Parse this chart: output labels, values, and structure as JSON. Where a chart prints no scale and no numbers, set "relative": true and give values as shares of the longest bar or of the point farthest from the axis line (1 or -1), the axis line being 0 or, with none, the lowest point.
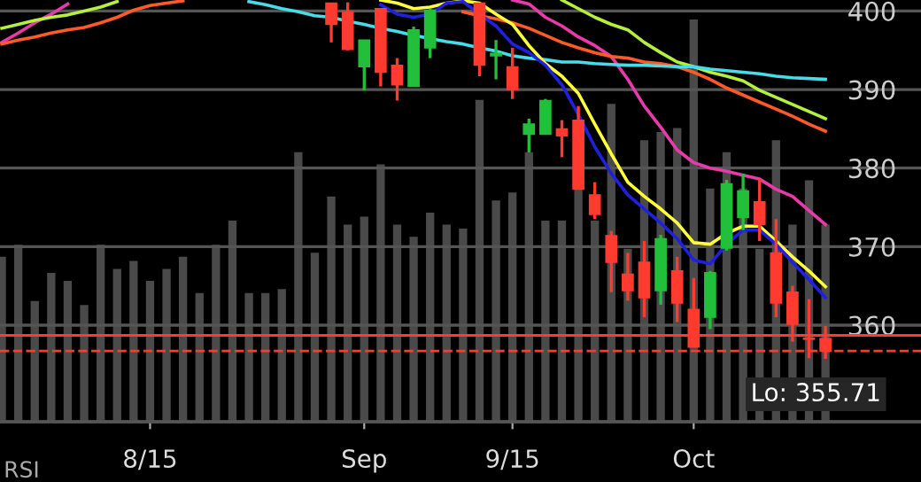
{
  "chart_data": [
    {
      "type": "candlestick",
      "categories": [
        null,
        null,
        null,
        null,
        null,
        null,
        null,
        null,
        null,
        "8/15",
        null,
        null,
        null,
        null,
        null,
        null,
        null,
        null,
        null,
        null,
        null,
        null,
        "Sep",
        null,
        null,
        null,
        null,
        null,
        null,
        null,
        null,
        "9/15",
        null,
        null,
        null,
        null,
        null,
        null,
        null,
        null,
        null,
        null,
        "Oct",
        null,
        null,
        null,
        null,
        null,
        null,
        null,
        null
      ],
      "ohlc": [
        null,
        null,
        null,
        null,
        null,
        null,
        null,
        null,
        null,
        null,
        null,
        null,
        null,
        null,
        null,
        null,
        null,
        null,
        null,
        null,
        [
          401.0,
          401.0,
          396.0,
          398.3
        ],
        [
          399.9,
          401.1,
          395.0,
          395.1
        ],
        [
          392.9,
          396.3,
          389.9,
          396.3
        ],
        [
          400.3,
          400.3,
          390.4,
          392.2
        ],
        [
          393.1,
          394.0,
          388.6,
          390.6
        ],
        [
          390.4,
          398.0,
          390.4,
          397.6
        ],
        [
          395.3,
          400.3,
          394.0,
          400.1
        ],
        null,
        null,
        [
          401.0,
          401.0,
          391.7,
          393.1
        ],
        [
          394.3,
          396.3,
          391.3,
          394.6
        ],
        [
          392.9,
          395.3,
          388.8,
          390.0
        ],
        [
          384.3,
          386.3,
          382.0,
          385.6
        ],
        [
          384.3,
          388.8,
          384.3,
          388.6
        ],
        [
          385.0,
          386.1,
          381.4,
          384.1
        ],
        [
          386.1,
          387.9,
          377.3,
          377.3
        ],
        [
          376.6,
          378.2,
          373.5,
          374.1
        ],
        [
          371.4,
          372.0,
          364.2,
          368.0
        ],
        [
          366.5,
          369.2,
          363.1,
          364.4
        ],
        [
          368.0,
          370.7,
          361.0,
          363.5
        ],
        [
          364.4,
          371.5,
          362.6,
          371.0
        ],
        [
          366.9,
          368.7,
          360.4,
          362.8
        ],
        [
          362.0,
          366.0,
          357.2,
          357.2
        ],
        [
          361.0,
          366.9,
          359.5,
          366.7
        ],
        [
          369.8,
          378.5,
          369.5,
          378.0
        ],
        [
          373.7,
          379.3,
          372.1,
          377.1
        ],
        [
          375.7,
          378.6,
          370.7,
          372.8
        ],
        [
          369.2,
          373.5,
          361.0,
          362.8
        ],
        [
          364.2,
          365.0,
          357.9,
          360.1
        ],
        [
          358.3,
          363.3,
          355.8,
          358.2
        ],
        [
          358.3,
          359.9,
          355.71,
          356.7
        ]
      ],
      "colors": [
        "#ff3b30",
        "#ff3b30",
        "#ff3b30",
        "#ff3b30",
        "#ff3b30",
        "#ff3b30",
        "#ff3b30",
        "#ff3b30",
        "#ff3b30",
        "#ff3b30",
        "#ff3b30",
        "#ff3b30",
        "#ff3b30",
        "#ff3b30",
        "#ff3b30",
        "#ff3b30",
        "#ff3b30",
        "#ff3b30",
        "#ff3b30",
        "#ff3b30",
        "#ff3b30",
        "#ff3b30",
        "#22c03a",
        "#ff3b30",
        "#ff3b30",
        "#22c03a",
        "#22c03a",
        "#ff3b30",
        "#ff3b30",
        "#ff3b30",
        "#22c03a",
        "#ff3b30",
        "#22c03a",
        "#22c03a",
        "#ff3b30",
        "#ff3b30",
        "#ff3b30",
        "#ff3b30",
        "#ff3b30",
        "#ff3b30",
        "#22c03a",
        "#ff3b30",
        "#ff3b30",
        "#22c03a",
        "#22c03a",
        "#22c03a",
        "#ff3b30",
        "#ff3b30",
        "#ff3b30",
        "#ff3b30",
        "#ff3b30"
      ],
      "series": [
        {
          "type": "line",
          "color": "#e83aa8",
          "values": [
            396.0,
            397.2,
            398.5,
            399.6,
            400.9,
            null,
            null,
            null,
            null,
            null,
            null,
            null,
            null,
            null,
            null,
            null,
            null,
            null,
            null,
            null,
            null,
            null,
            null,
            null,
            null,
            null,
            null,
            null,
            null,
            null,
            null,
            401.4,
            400.9,
            399.2,
            398.1,
            396.7,
            395.6,
            394.2,
            391.3,
            387.9,
            385.2,
            382.3,
            380.7,
            380.0,
            379.6,
            379.1,
            378.6,
            377.3,
            376.4,
            374.6,
            372.8
          ]
        },
        {
          "type": "line",
          "color": "#b4f03c",
          "values": [
            397.8,
            398.3,
            398.8,
            399.2,
            399.5,
            400.0,
            400.5,
            401.2,
            null,
            null,
            null,
            null,
            null,
            null,
            null,
            null,
            null,
            null,
            null,
            null,
            null,
            null,
            null,
            null,
            null,
            null,
            null,
            null,
            null,
            null,
            null,
            null,
            null,
            null,
            401.4,
            400.3,
            399.2,
            398.3,
            397.6,
            396.0,
            394.7,
            393.5,
            392.9,
            392.2,
            391.7,
            391.1,
            389.9,
            389.0,
            388.1,
            387.2,
            386.3
          ]
        },
        {
          "type": "line",
          "color": "#ff5a28",
          "values": [
            395.8,
            396.3,
            396.7,
            397.2,
            397.6,
            397.9,
            398.5,
            399.2,
            400.1,
            400.7,
            401.0,
            401.3,
            null,
            null,
            null,
            null,
            null,
            null,
            null,
            null,
            null,
            null,
            null,
            null,
            null,
            null,
            null,
            null,
            399.9,
            399.4,
            399.0,
            398.5,
            397.8,
            396.9,
            396.0,
            395.3,
            394.7,
            394.2,
            394.0,
            393.5,
            393.3,
            392.9,
            392.2,
            391.3,
            390.2,
            389.3,
            388.4,
            387.5,
            386.6,
            385.6,
            384.7
          ]
        },
        {
          "type": "line",
          "color": "#46dcea",
          "values": [
            null,
            null,
            null,
            null,
            null,
            null,
            null,
            null,
            null,
            null,
            null,
            null,
            null,
            null,
            null,
            401.2,
            400.8,
            400.3,
            399.9,
            399.4,
            399.2,
            398.7,
            398.3,
            397.8,
            397.4,
            396.9,
            396.5,
            396.1,
            395.8,
            395.3,
            394.9,
            394.3,
            394.0,
            393.8,
            393.5,
            393.5,
            393.3,
            393.2,
            393.1,
            393.1,
            393.0,
            392.9,
            392.9,
            392.6,
            392.4,
            392.2,
            392.0,
            391.7,
            391.5,
            391.4,
            391.3
          ]
        },
        {
          "type": "line",
          "color": "#ffff3c",
          "values": [
            null,
            null,
            null,
            null,
            null,
            null,
            null,
            null,
            null,
            null,
            null,
            null,
            null,
            null,
            null,
            null,
            null,
            null,
            null,
            null,
            null,
            null,
            null,
            401.4,
            401.0,
            400.3,
            400.5,
            401.0,
            401.3,
            401.0,
            399.6,
            398.3,
            395.6,
            393.3,
            391.7,
            389.5,
            385.6,
            381.8,
            378.2,
            376.4,
            374.8,
            373.0,
            370.5,
            370.3,
            371.7,
            372.6,
            372.6,
            370.7,
            368.7,
            366.9,
            364.9
          ]
        },
        {
          "type": "line",
          "color": "#2020e0",
          "values": [
            null,
            null,
            null,
            null,
            null,
            null,
            null,
            null,
            null,
            null,
            null,
            null,
            null,
            null,
            null,
            null,
            null,
            null,
            null,
            null,
            null,
            null,
            null,
            400.8,
            399.6,
            399.2,
            399.6,
            401.0,
            401.2,
            399.6,
            398.1,
            395.8,
            394.7,
            393.1,
            390.6,
            386.8,
            382.7,
            379.3,
            376.6,
            374.8,
            373.0,
            371.0,
            368.3,
            367.8,
            370.3,
            372.1,
            372.1,
            370.3,
            368.0,
            365.8,
            363.5
          ]
        }
      ],
      "ylim": [
        347.7,
        401.4
      ],
      "yticks": [
        360,
        370,
        380,
        390,
        400
      ],
      "grid": "y",
      "ref_lines": [
        {
          "axis": "y",
          "value": 358.7,
          "color": "#ff3b30"
        },
        {
          "axis": "y",
          "value": 356.7,
          "color": "#ff3b30",
          "line_style": "dashed"
        }
      ],
      "annotations": [
        "Lo: 355.71",
        "RSI"
      ]
    },
    {
      "type": "bar",
      "relative": true,
      "color": "#4a4a4a",
      "categories": [
        null,
        null,
        null,
        null,
        null,
        null,
        null,
        null,
        null,
        null,
        null,
        null,
        null,
        null,
        null,
        null,
        null,
        null,
        null,
        null,
        null,
        null,
        null,
        null,
        null,
        null,
        null,
        null,
        null,
        null,
        null,
        null,
        null,
        null,
        null,
        null,
        null,
        null,
        null,
        null,
        null,
        null,
        null,
        null,
        null,
        null,
        null,
        null,
        null,
        null,
        null
      ],
      "values": [
        0.41,
        0.44,
        0.3,
        0.37,
        0.35,
        0.29,
        0.44,
        0.38,
        0.4,
        0.35,
        0.38,
        0.41,
        0.32,
        0.44,
        0.5,
        0.32,
        0.32,
        0.33,
        0.67,
        0.42,
        0.56,
        0.49,
        0.51,
        0.64,
        0.49,
        0.46,
        0.52,
        0.49,
        0.48,
        0.8,
        0.55,
        0.57,
        0.67,
        0.5,
        0.5,
        0.58,
        0.5,
        0.79,
        0.43,
        0.7,
        0.72,
        0.73,
        1,
        0.58,
        0.67,
        0.58,
        0.43,
        0.7,
        0.49,
        0.6,
        0.49
      ]
    }
  ]
}
